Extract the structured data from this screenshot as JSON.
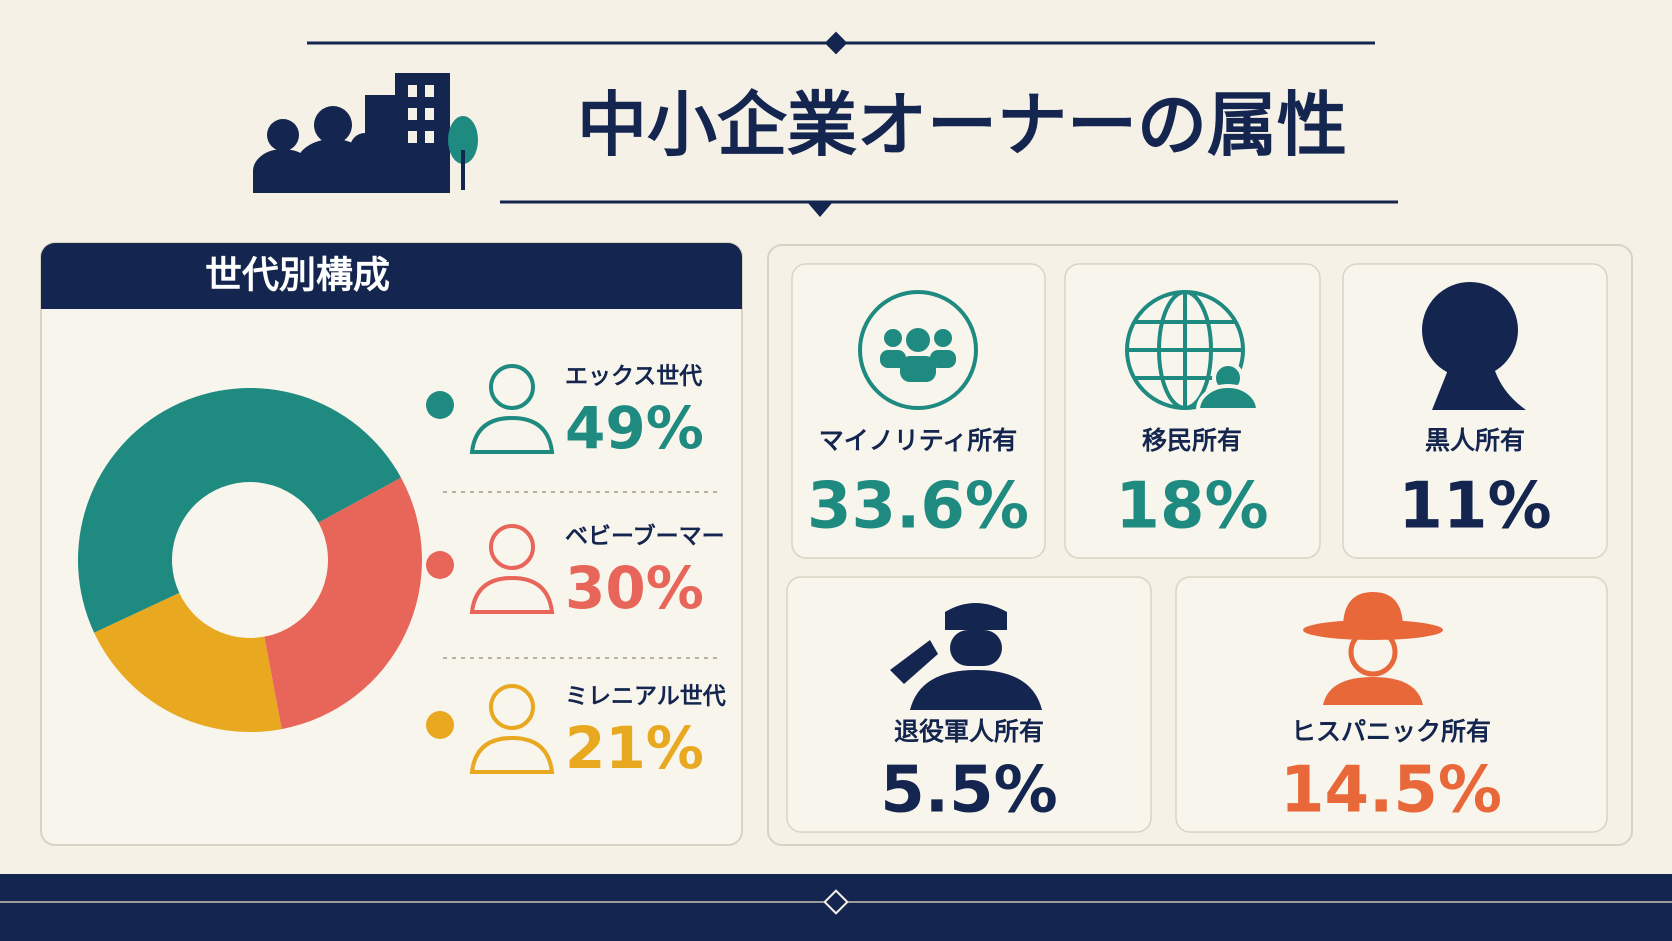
{
  "title": "中小企業オーナーの属性",
  "chart_data": {
    "type": "donut",
    "title": "世代別構成",
    "categories": [
      "エックス世代",
      "ベビーブーマー",
      "ミレニアル世代"
    ],
    "values": [
      49,
      30,
      21
    ],
    "value_labels": [
      "49%",
      "30%",
      "21%"
    ],
    "colors": [
      "#1e8a80",
      "#e8655a",
      "#e8a820"
    ]
  },
  "stats": [
    {
      "label": "マイノリティ所有",
      "value": "33.6%",
      "color": "#1e8a80"
    },
    {
      "label": "移民所有",
      "value": "18%",
      "color": "#1e8a80"
    },
    {
      "label": "黒人所有",
      "value": "11%",
      "color": "#14264f"
    },
    {
      "label": "退役軍人所有",
      "value": "5.5%",
      "color": "#14264f"
    },
    {
      "label": "ヒスパニック所有",
      "value": "14.5%",
      "color": "#e8683a"
    }
  ]
}
